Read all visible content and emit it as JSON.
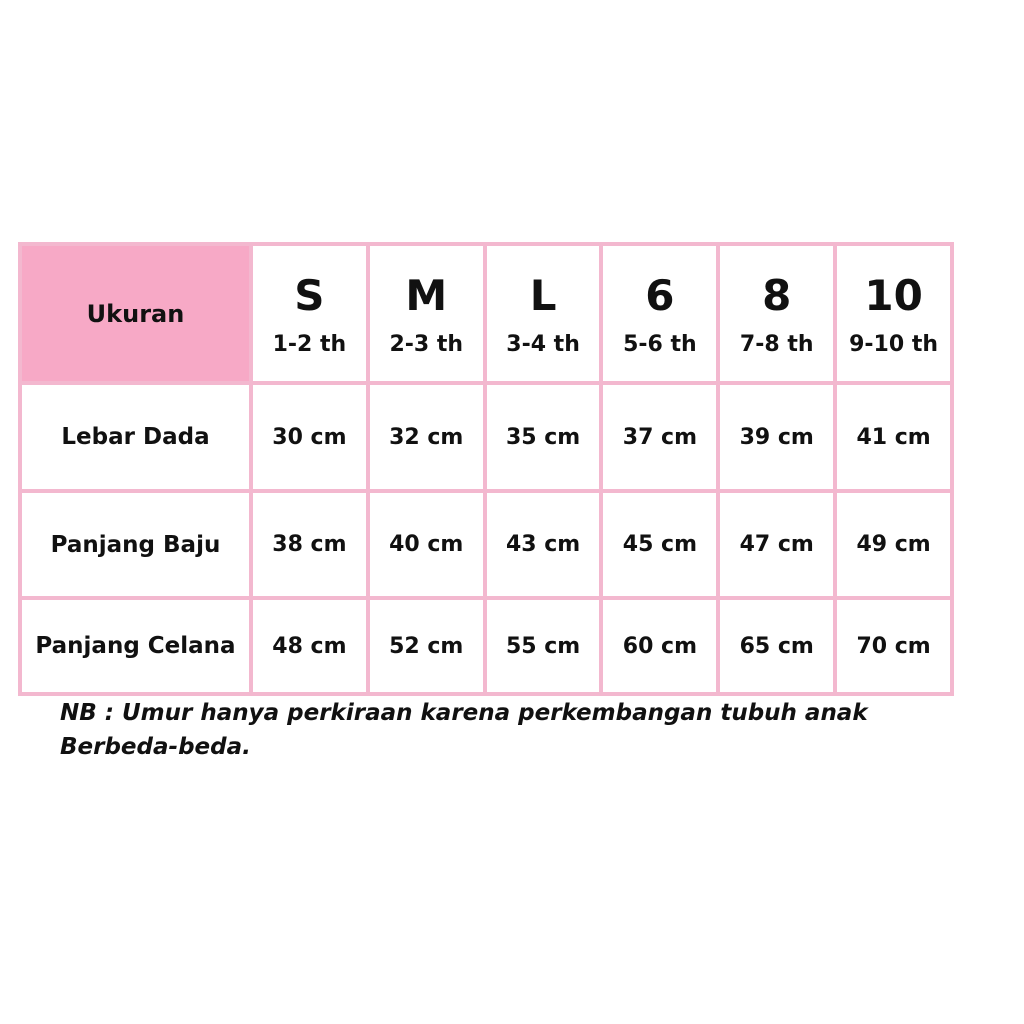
{
  "table": {
    "header_label": "Ukuran",
    "sizes": [
      {
        "size": "S",
        "age": "1-2 th"
      },
      {
        "size": "M",
        "age": "2-3 th"
      },
      {
        "size": "L",
        "age": "3-4 th"
      },
      {
        "size": "6",
        "age": "5-6 th"
      },
      {
        "size": "8",
        "age": "7-8 th"
      },
      {
        "size": "10",
        "age": "9-10 th"
      }
    ],
    "rows": [
      {
        "label": "Lebar Dada",
        "values": [
          "30 cm",
          "32 cm",
          "35 cm",
          "37 cm",
          "39 cm",
          "41 cm"
        ]
      },
      {
        "label": "Panjang Baju",
        "values": [
          "38 cm",
          "40 cm",
          "43 cm",
          "45 cm",
          "47 cm",
          "49 cm"
        ]
      },
      {
        "label": "Panjang Celana",
        "values": [
          "48 cm",
          "52 cm",
          "55 cm",
          "60 cm",
          "65 cm",
          "70 cm"
        ]
      }
    ]
  },
  "note": {
    "line1": "NB : Umur hanya perkiraan karena perkembangan tubuh anak",
    "line2": "Berbeda-beda."
  },
  "colors": {
    "header_fill": "#f7a9c6",
    "border": "#f3b8cf"
  }
}
